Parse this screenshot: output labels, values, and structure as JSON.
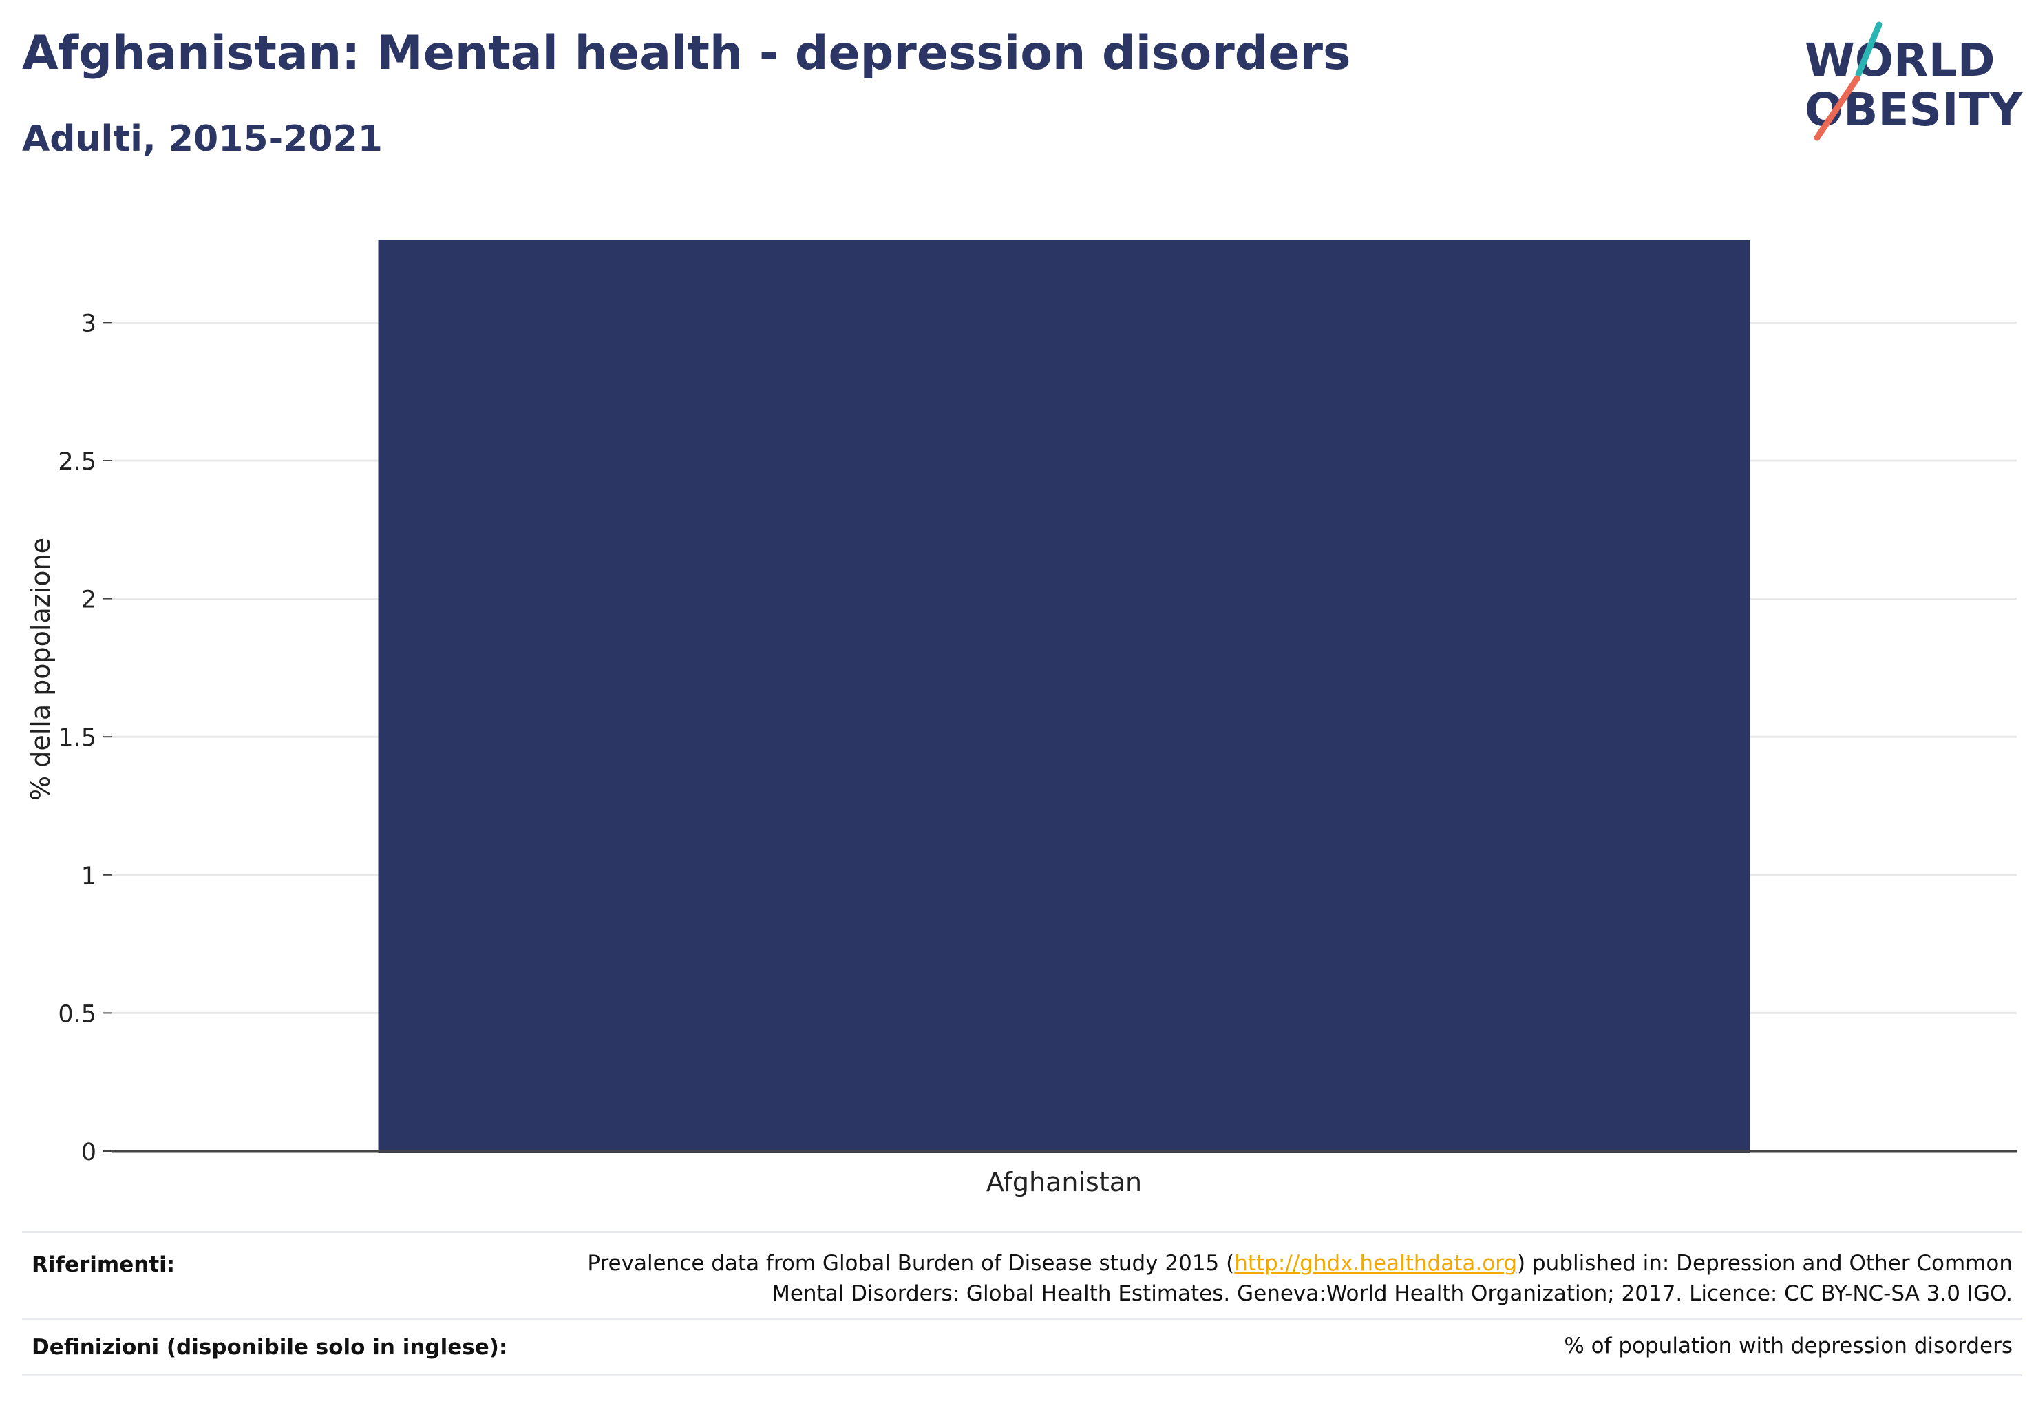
{
  "header": {
    "title": "Afghanistan: Mental health - depression disorders",
    "subtitle": "Adulti, 2015-2021"
  },
  "logo": {
    "line1": "WORLD",
    "line2": "OBESITY",
    "colors": {
      "text": "#2b3664",
      "slash_top": "#2bb5b2",
      "slash_bottom": "#ea6a56"
    }
  },
  "chart_data": {
    "type": "bar",
    "categories": [
      "Afghanistan"
    ],
    "values": [
      3.3
    ],
    "title": "Afghanistan: Mental health - depression disorders",
    "subtitle": "Adulti, 2015-2021",
    "xlabel": "",
    "ylabel": "% della popolazione",
    "ylim": [
      0,
      3.32
    ],
    "yticks": [
      0,
      0.5,
      1,
      1.5,
      2,
      2.5,
      3
    ],
    "ytick_labels": [
      "0",
      "0.5",
      "1",
      "1.5",
      "2",
      "2.5",
      "3"
    ],
    "grid": true,
    "legend": "none",
    "bar_color": "#2b3664"
  },
  "footer": {
    "references_label": "Riferimenti:",
    "references_line1_pre": "Prevalence data from Global Burden of Disease study 2015 (",
    "references_link": "http://ghdx.healthdata.org",
    "references_line1_post": ") published in: Depression and Other Common",
    "references_line2": "Mental Disorders: Global Health Estimates. Geneva:World Health Organization; 2017. Licence: CC BY-NC-SA 3.0 IGO.",
    "definitions_label": "Definizioni (disponibile solo in inglese):",
    "definitions_text": "% of population with depression disorders"
  }
}
